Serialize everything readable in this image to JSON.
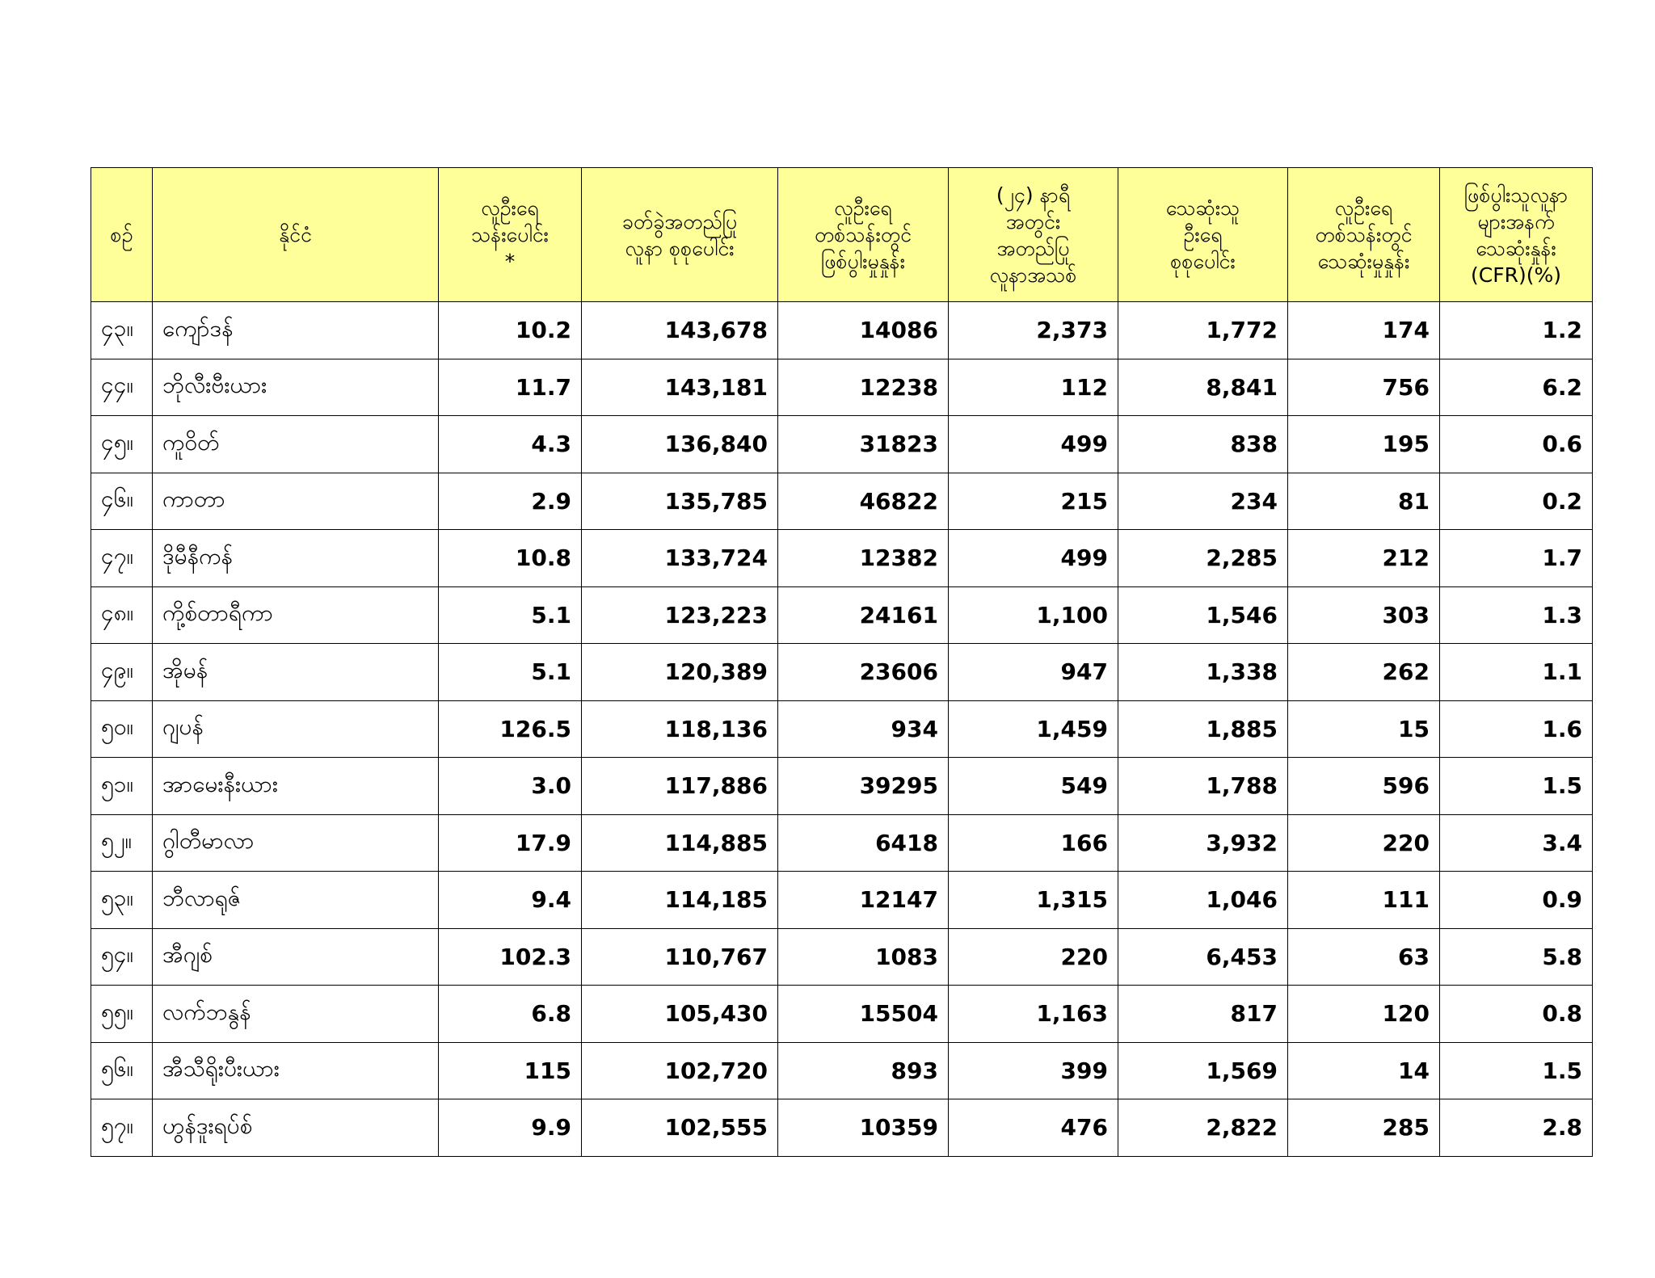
{
  "table": {
    "headers": [
      "စဉ်",
      "နိုင်ငံ",
      "လူဦးရေ\nသန်းပေါင်း\n*",
      "ခတ်ခွဲအတည်ပြု\nလူနာ စုစုပေါင်း",
      "လူဦးရေ\nတစ်သန်းတွင်\nဖြစ်ပွါးမှုနှုန်း",
      "(၂၄) နာရီ\nအတွင်း\nအတည်ပြု\nလူနာအသစ်",
      "သေဆုံးသူ\nဦးရေ\nစုစုပေါင်း",
      "လူဦးရေ\nတစ်သန်းတွင်\nသေဆုံးမှုနှုန်း",
      "ဖြစ်ပွါးသူလူနာ\nများအနက်\nသေဆုံးနှုန်း\n(CFR)(%)"
    ],
    "rows": [
      [
        "၄၃။",
        "ကျော်ဒန်",
        "10.2",
        "143,678",
        "14086",
        "2,373",
        "1,772",
        "174",
        "1.2"
      ],
      [
        "၄၄။",
        "ဘိုလီးဗီးယား",
        "11.7",
        "143,181",
        "12238",
        "112",
        "8,841",
        "756",
        "6.2"
      ],
      [
        "၄၅။",
        "ကူဝိတ်",
        "4.3",
        "136,840",
        "31823",
        "499",
        "838",
        "195",
        "0.6"
      ],
      [
        "၄၆။",
        "ကာတာ",
        "2.9",
        "135,785",
        "46822",
        "215",
        "234",
        "81",
        "0.2"
      ],
      [
        "၄၇။",
        "ဒိုမီနီကန်",
        "10.8",
        "133,724",
        "12382",
        "499",
        "2,285",
        "212",
        "1.7"
      ],
      [
        "၄၈။",
        "ကို့စ်တာရီကာ",
        "5.1",
        "123,223",
        "24161",
        "1,100",
        "1,546",
        "303",
        "1.3"
      ],
      [
        "၄၉။",
        "အိုမန်",
        "5.1",
        "120,389",
        "23606",
        "947",
        "1,338",
        "262",
        "1.1"
      ],
      [
        "၅၀။",
        "ဂျပန်",
        "126.5",
        "118,136",
        "934",
        "1,459",
        "1,885",
        "15",
        "1.6"
      ],
      [
        "၅၁။",
        "အာမေးနီးယား",
        "3.0",
        "117,886",
        "39295",
        "549",
        "1,788",
        "596",
        "1.5"
      ],
      [
        "၅၂။",
        "ဂွါတီမာလာ",
        "17.9",
        "114,885",
        "6418",
        "166",
        "3,932",
        "220",
        "3.4"
      ],
      [
        "၅၃။",
        "ဘီလာရုဇ်",
        "9.4",
        "114,185",
        "12147",
        "1,315",
        "1,046",
        "111",
        "0.9"
      ],
      [
        "၅၄။",
        "အီဂျစ်",
        "102.3",
        "110,767",
        "1083",
        "220",
        "6,453",
        "63",
        "5.8"
      ],
      [
        "၅၅။",
        "လက်ဘနွန်",
        "6.8",
        "105,430",
        "15504",
        "1,163",
        "817",
        "120",
        "0.8"
      ],
      [
        "၅၆။",
        "အီသီရိုးပီးယား",
        "115",
        "102,720",
        "893",
        "399",
        "1,569",
        "14",
        "1.5"
      ],
      [
        "၅၇။",
        "ဟွန်ဒူးရပ်စ်",
        "9.9",
        "102,555",
        "10359",
        "476",
        "2,822",
        "285",
        "2.8"
      ]
    ]
  }
}
